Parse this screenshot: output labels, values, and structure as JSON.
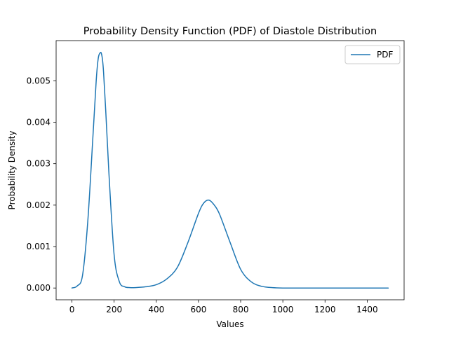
{
  "chart_data": {
    "type": "line",
    "title": "Probability Density Function (PDF) of Diastole Distribution",
    "xlabel": "Values",
    "ylabel": "Probability Density",
    "xlim": [
      -75,
      1575
    ],
    "ylim": [
      -0.000284,
      0.005969
    ],
    "x_ticks": [
      0,
      200,
      400,
      600,
      800,
      1000,
      1200,
      1400
    ],
    "x_tick_labels": [
      "0",
      "200",
      "400",
      "600",
      "800",
      "1000",
      "1200",
      "1400"
    ],
    "y_ticks": [
      0.0,
      0.001,
      0.002,
      0.003,
      0.004,
      0.005
    ],
    "y_tick_labels": [
      "0.000",
      "0.001",
      "0.002",
      "0.003",
      "0.004",
      "0.005"
    ],
    "grid": false,
    "legend": {
      "position": "top-right",
      "entries": [
        "PDF"
      ]
    },
    "series": [
      {
        "name": "PDF",
        "color": "#1f77b4",
        "x": [
          0,
          25,
          50,
          75,
          100,
          115,
          125,
          135,
          140,
          145,
          150,
          160,
          175,
          200,
          225,
          250,
          275,
          300,
          350,
          400,
          450,
          500,
          550,
          600,
          625,
          650,
          675,
          700,
          750,
          800,
          850,
          900,
          950,
          1000,
          1050,
          1100,
          1200,
          1300,
          1400,
          1500
        ],
        "y": [
          0.0,
          5e-05,
          0.0003,
          0.0016,
          0.0037,
          0.005,
          0.00555,
          0.00568,
          0.00565,
          0.0055,
          0.0052,
          0.0043,
          0.0028,
          0.0008,
          0.00015,
          3e-05,
          1e-05,
          1e-05,
          3e-05,
          8e-05,
          0.00022,
          0.0005,
          0.0011,
          0.0018,
          0.00205,
          0.00212,
          0.002,
          0.00178,
          0.0011,
          0.00045,
          0.00015,
          4e-05,
          1e-05,
          0.0,
          0.0,
          0.0,
          0.0,
          0.0,
          0.0,
          0.0
        ]
      }
    ]
  }
}
